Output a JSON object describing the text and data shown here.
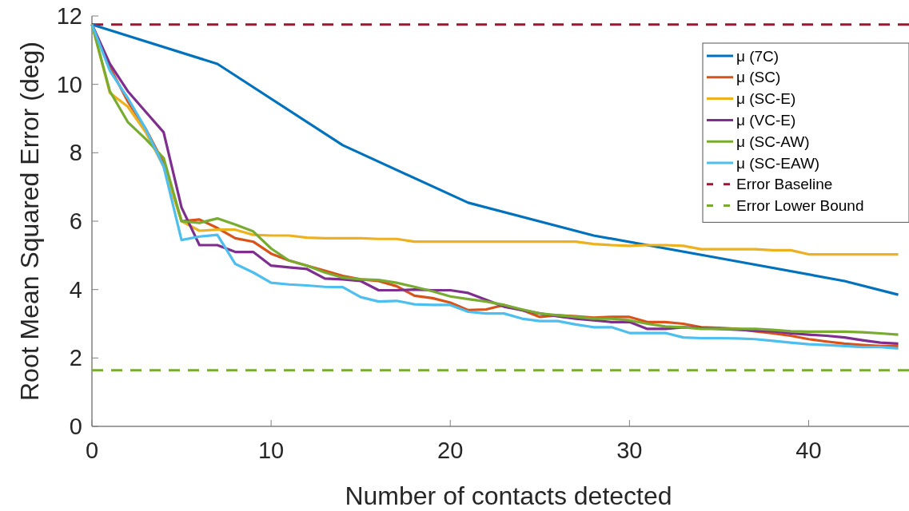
{
  "chart_data": {
    "type": "line",
    "xlabel": "Number of contacts detected",
    "ylabel": "Root Mean Squared Error (deg)",
    "xlim": [
      0,
      45.6
    ],
    "xticks": [
      0,
      10,
      20,
      30,
      40
    ],
    "ylim": [
      0,
      12
    ],
    "yticks": [
      0,
      2,
      4,
      6,
      8,
      10,
      12
    ],
    "grid": false,
    "legend": "top right",
    "marker": "none",
    "line_style": "solid",
    "series": [
      {
        "name": "μ (7C)",
        "color": "#0072bd",
        "x": [
          0,
          7,
          14,
          21,
          28,
          35,
          42,
          45
        ],
        "values": [
          11.75,
          10.6,
          8.22,
          6.54,
          5.58,
          4.92,
          4.25,
          3.85
        ]
      },
      {
        "name": "μ (SC)",
        "color": "#d95319",
        "x": [
          0,
          1,
          2,
          3,
          4,
          5,
          6,
          7,
          8,
          9,
          10,
          11,
          12,
          13,
          14,
          15,
          16,
          17,
          18,
          19,
          20,
          21,
          22,
          23,
          24,
          25,
          26,
          27,
          28,
          29,
          30,
          31,
          32,
          33,
          34,
          35,
          36,
          37,
          38,
          39,
          40,
          41,
          42,
          43,
          44,
          45
        ],
        "values": [
          11.75,
          10.5,
          9.5,
          8.7,
          7.7,
          6.0,
          6.05,
          5.8,
          5.5,
          5.4,
          5.05,
          4.85,
          4.7,
          4.55,
          4.4,
          4.3,
          4.25,
          4.1,
          3.82,
          3.75,
          3.62,
          3.4,
          3.42,
          3.55,
          3.4,
          3.2,
          3.25,
          3.22,
          3.18,
          3.2,
          3.2,
          3.05,
          3.05,
          3.0,
          2.9,
          2.88,
          2.85,
          2.78,
          2.72,
          2.65,
          2.55,
          2.48,
          2.42,
          2.38,
          2.35,
          2.35
        ]
      },
      {
        "name": "μ (SC-E)",
        "color": "#edb120",
        "x": [
          0,
          1,
          2,
          3,
          4,
          5,
          6,
          7,
          8,
          9,
          10,
          11,
          12,
          13,
          14,
          15,
          16,
          17,
          18,
          19,
          20,
          21,
          22,
          23,
          24,
          25,
          26,
          27,
          28,
          29,
          30,
          31,
          32,
          33,
          34,
          35,
          36,
          37,
          38,
          39,
          40,
          41,
          42,
          43,
          44,
          45
        ],
        "values": [
          11.75,
          9.75,
          9.35,
          8.6,
          7.6,
          6.0,
          5.72,
          5.75,
          5.75,
          5.6,
          5.58,
          5.58,
          5.52,
          5.5,
          5.5,
          5.5,
          5.48,
          5.48,
          5.4,
          5.4,
          5.4,
          5.4,
          5.4,
          5.4,
          5.4,
          5.4,
          5.4,
          5.4,
          5.33,
          5.3,
          5.28,
          5.3,
          5.3,
          5.28,
          5.18,
          5.18,
          5.18,
          5.18,
          5.15,
          5.15,
          5.03,
          5.03,
          5.03,
          5.03,
          5.03,
          5.03
        ]
      },
      {
        "name": "μ (VC-E)",
        "color": "#7e2f8e",
        "x": [
          0,
          1,
          2,
          3,
          4,
          5,
          6,
          7,
          8,
          9,
          10,
          11,
          12,
          13,
          14,
          15,
          16,
          17,
          18,
          19,
          20,
          21,
          22,
          23,
          24,
          25,
          26,
          27,
          28,
          29,
          30,
          31,
          32,
          33,
          34,
          35,
          36,
          37,
          38,
          39,
          40,
          41,
          42,
          43,
          44,
          45
        ],
        "values": [
          11.75,
          10.6,
          9.8,
          9.2,
          8.6,
          6.4,
          5.3,
          5.3,
          5.1,
          5.1,
          4.7,
          4.65,
          4.6,
          4.32,
          4.3,
          4.25,
          3.98,
          3.98,
          4.0,
          3.98,
          3.98,
          3.9,
          3.7,
          3.5,
          3.4,
          3.3,
          3.22,
          3.15,
          3.1,
          3.05,
          3.05,
          2.85,
          2.85,
          2.9,
          2.88,
          2.85,
          2.83,
          2.8,
          2.78,
          2.72,
          2.68,
          2.65,
          2.6,
          2.52,
          2.45,
          2.42
        ]
      },
      {
        "name": "μ (SC-AW)",
        "color": "#77ac30",
        "x": [
          0,
          1,
          2,
          3,
          4,
          5,
          6,
          7,
          8,
          9,
          10,
          11,
          12,
          13,
          14,
          15,
          16,
          17,
          18,
          19,
          20,
          21,
          22,
          23,
          24,
          25,
          26,
          27,
          28,
          29,
          30,
          31,
          32,
          33,
          34,
          35,
          36,
          37,
          38,
          39,
          40,
          41,
          42,
          43,
          44,
          45
        ],
        "values": [
          11.75,
          9.8,
          8.9,
          8.4,
          7.85,
          6.0,
          5.95,
          6.08,
          5.9,
          5.7,
          5.2,
          4.85,
          4.7,
          4.5,
          4.35,
          4.3,
          4.28,
          4.2,
          4.08,
          3.95,
          3.8,
          3.72,
          3.65,
          3.55,
          3.42,
          3.3,
          3.25,
          3.2,
          3.15,
          3.15,
          3.1,
          3.0,
          2.92,
          2.9,
          2.85,
          2.85,
          2.85,
          2.85,
          2.82,
          2.78,
          2.77,
          2.77,
          2.77,
          2.75,
          2.72,
          2.68
        ]
      },
      {
        "name": "μ (SC-EAW)",
        "color": "#4dbeee",
        "x": [
          0,
          1,
          2,
          3,
          4,
          5,
          6,
          7,
          8,
          9,
          10,
          11,
          12,
          13,
          14,
          15,
          16,
          17,
          18,
          19,
          20,
          21,
          22,
          23,
          24,
          25,
          26,
          27,
          28,
          29,
          30,
          31,
          32,
          33,
          34,
          35,
          36,
          37,
          38,
          39,
          40,
          41,
          42,
          43,
          44,
          45
        ],
        "values": [
          11.75,
          10.4,
          9.6,
          8.7,
          7.6,
          5.45,
          5.55,
          5.6,
          4.75,
          4.5,
          4.2,
          4.15,
          4.12,
          4.08,
          4.07,
          3.78,
          3.65,
          3.67,
          3.57,
          3.55,
          3.55,
          3.35,
          3.3,
          3.3,
          3.15,
          3.08,
          3.08,
          2.98,
          2.9,
          2.9,
          2.73,
          2.73,
          2.73,
          2.6,
          2.58,
          2.58,
          2.57,
          2.55,
          2.5,
          2.45,
          2.4,
          2.38,
          2.35,
          2.32,
          2.32,
          2.28
        ]
      }
    ],
    "ref_lines": [
      {
        "axis": "y",
        "value": 11.75,
        "label": "Error Baseline",
        "color": "#a2142f",
        "line_style": "dashed"
      },
      {
        "axis": "y",
        "value": 1.64,
        "label": "Error Lower Bound",
        "color": "#77ac30",
        "line_style": "dashed"
      }
    ]
  }
}
